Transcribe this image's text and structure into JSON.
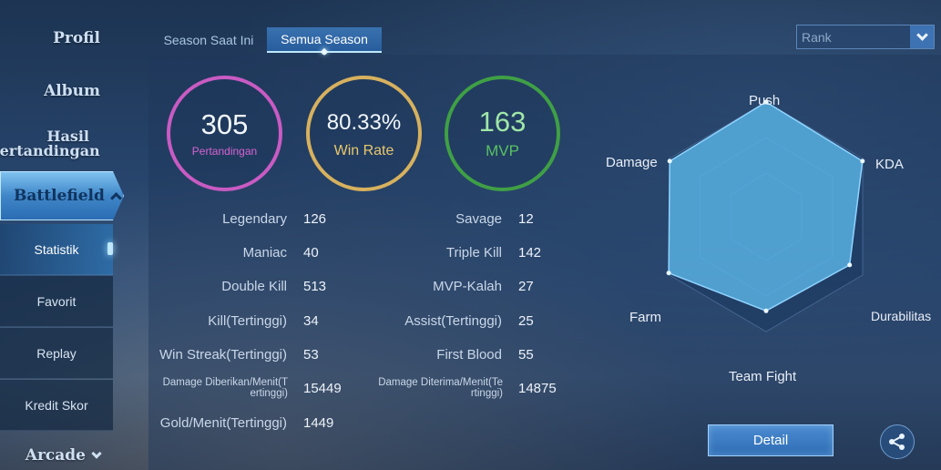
{
  "sidebar": {
    "profil": "Profil",
    "album": "Album",
    "hasil_line1": "Hasil",
    "hasil_line2": "Pertandingan",
    "battlefield": "Battlefield",
    "sub_items": [
      "Statistik",
      "Favorit",
      "Replay",
      "Kredit Skor"
    ],
    "arcade": "Arcade"
  },
  "tabs": [
    "Season Saat Ini",
    "Semua Season"
  ],
  "rank_select": {
    "value": "Rank"
  },
  "summary": {
    "games": {
      "value": "305",
      "label": "Pertandingan"
    },
    "win_rate": {
      "value": "80.33%",
      "label": "Win Rate"
    },
    "mvp": {
      "value": "163",
      "label": "MVP"
    }
  },
  "stats_left": [
    {
      "label": "Legendary",
      "value": "126"
    },
    {
      "label": "Maniac",
      "value": "40"
    },
    {
      "label": "Double Kill",
      "value": "513"
    },
    {
      "label": "Kill(Tertinggi)",
      "value": "34"
    },
    {
      "label": "Win Streak(Tertinggi)",
      "value": "53"
    },
    {
      "label_line1": "Damage Diberikan/Menit(T",
      "label_line2": "ertinggi)",
      "value": "15449"
    },
    {
      "label": "Gold/Menit(Tertinggi)",
      "value": "1449"
    }
  ],
  "stats_right": [
    {
      "label": "Savage",
      "value": "12"
    },
    {
      "label": "Triple Kill",
      "value": "142"
    },
    {
      "label": "MVP-Kalah",
      "value": "27"
    },
    {
      "label": "Assist(Tertinggi)",
      "value": "25"
    },
    {
      "label": "First Blood",
      "value": "55"
    },
    {
      "label_line1": "Damage Diterima/Menit(Te",
      "label_line2": "rtinggi)",
      "value": "14875"
    }
  ],
  "radar": {
    "labels": {
      "push": "Push",
      "kda": "KDA",
      "durabilitas": "Durabilitas",
      "team_fight": "Team Fight",
      "farm": "Farm",
      "damage": "Damage"
    },
    "fill_color": "#5ab4e6",
    "levels": {
      "push": 1.0,
      "kda": 0.97,
      "durabilitas": 0.84,
      "team_fight": 0.82,
      "farm": 0.98,
      "damage": 0.97
    }
  },
  "actions": {
    "detail": "Detail",
    "share_icon": "share-icon"
  }
}
